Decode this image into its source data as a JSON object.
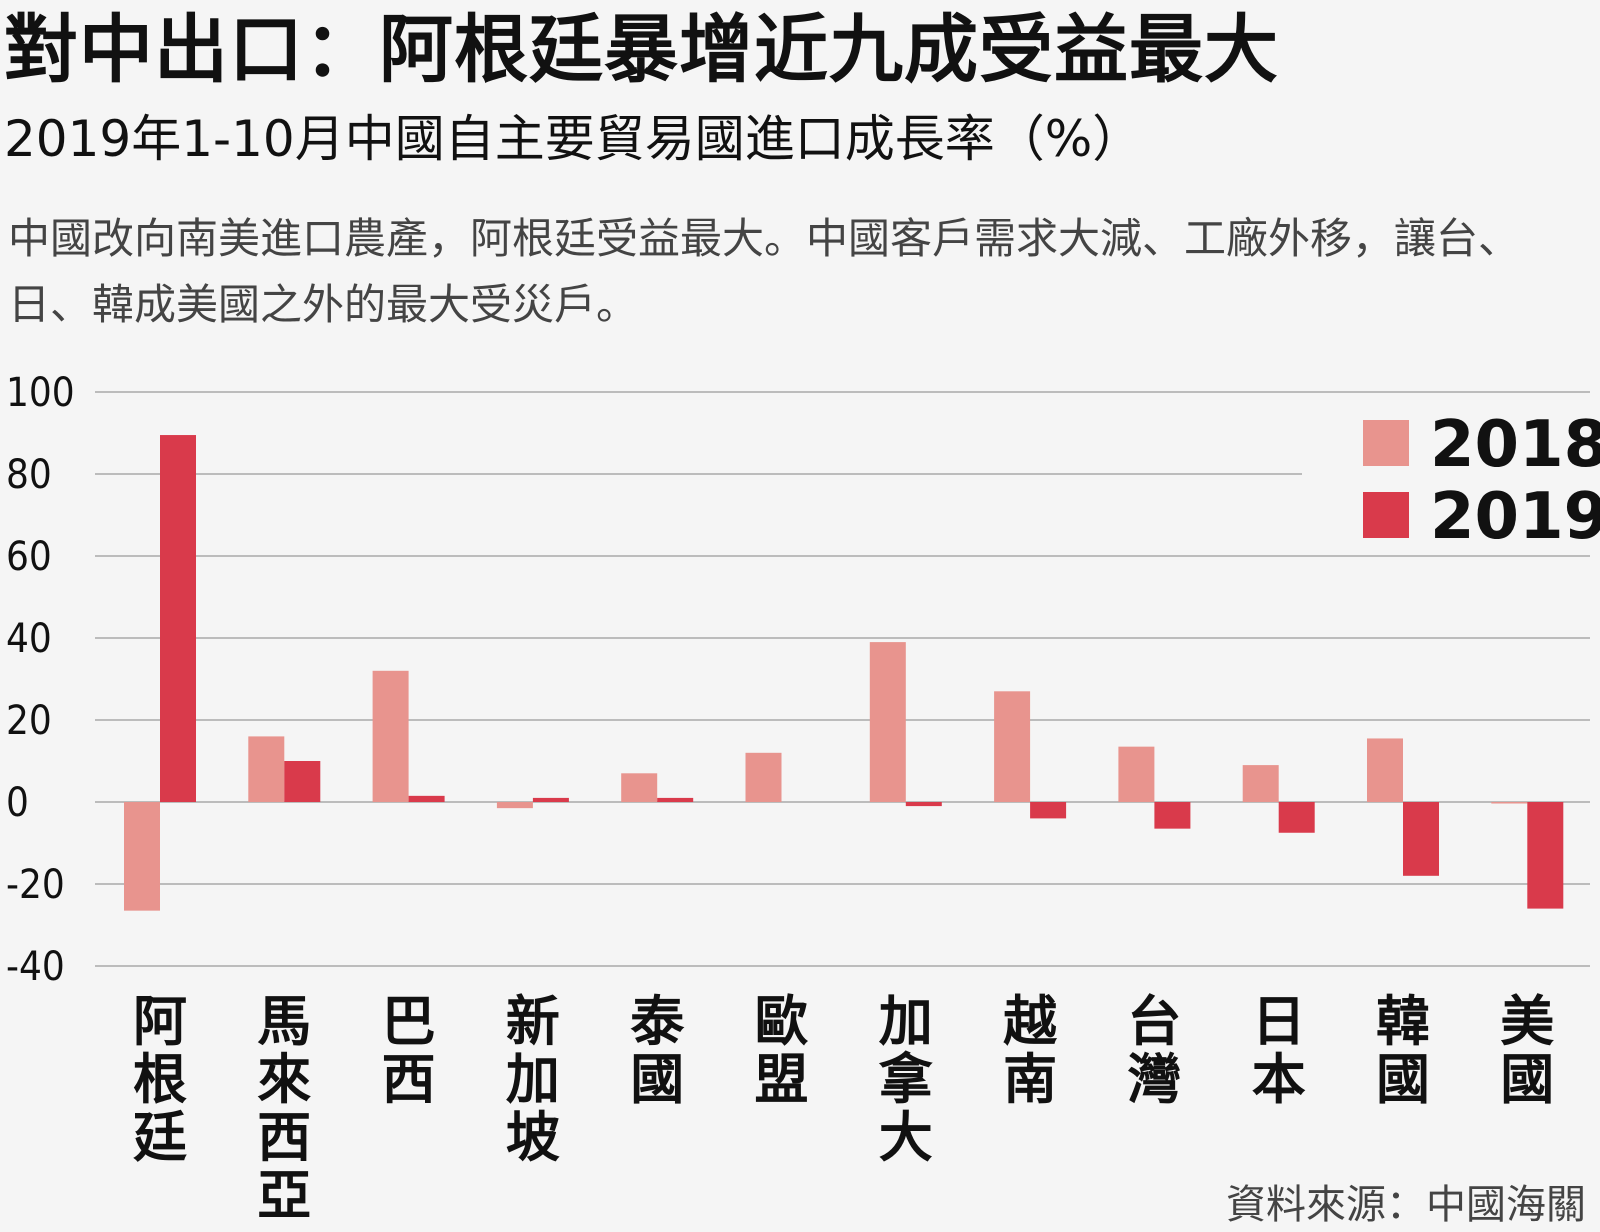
{
  "header": {
    "title": "對中出口：阿根廷暴增近九成受益最大",
    "subtitle": "2019年1-10月中國自主要貿易國進口成長率（%）",
    "description": "中國改向南美進口農產，阿根廷受益最大。中國客戶需求大減、工廠外移，讓台、日、韓成美國之外的最大受災戶。"
  },
  "source": "資料來源：中國海關",
  "colors": {
    "s2018": "#e8948e",
    "s2019": "#d93a4b",
    "grid": "#bcbcbc"
  },
  "chart_data": {
    "type": "bar",
    "title": "對中出口：阿根廷暴增近九成受益最大",
    "subtitle": "2019年1-10月中國自主要貿易國進口成長率（%）",
    "categories": [
      "阿根廷",
      "馬來西亞",
      "巴西",
      "新加坡",
      "泰國",
      "歐盟",
      "加拿大",
      "越南",
      "台灣",
      "日本",
      "韓國",
      "美國"
    ],
    "series": [
      {
        "name": "2018",
        "values": [
          -26.5,
          16,
          32,
          -1.5,
          7,
          12,
          39,
          27,
          13.5,
          9,
          15.5,
          -0.3
        ]
      },
      {
        "name": "2019",
        "values": [
          89.5,
          10,
          1.5,
          1,
          1,
          0,
          -1,
          -4,
          -6.5,
          -7.5,
          -18,
          -26
        ]
      }
    ],
    "yticks": [
      "100",
      "80",
      "60",
      "40",
      "20",
      "0",
      "-20",
      "-40"
    ],
    "ylim": [
      -40,
      100
    ],
    "grid": true,
    "legend_position": "top-right"
  }
}
